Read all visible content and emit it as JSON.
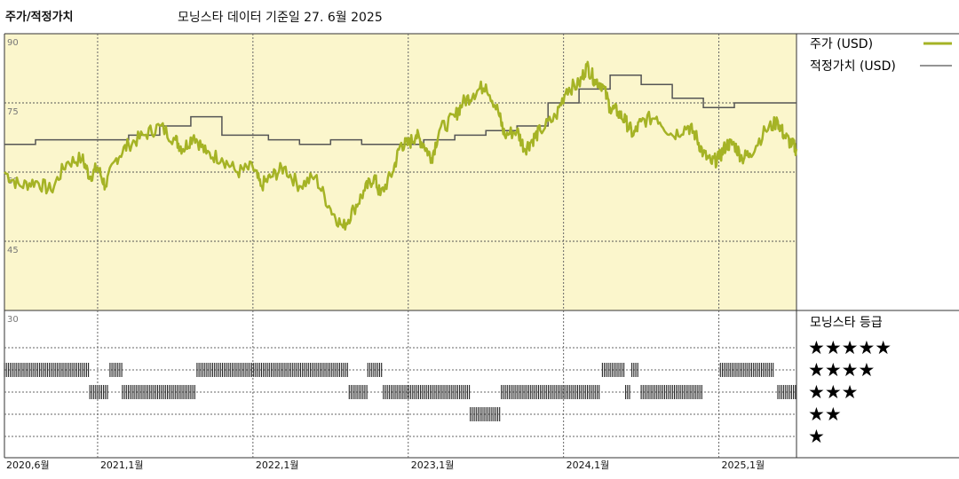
{
  "header": {
    "title": "주가/적정가치",
    "subtitle": "모닝스타 데이터 기준일 27. 6월 2025"
  },
  "legend": {
    "price": "주가 (USD)",
    "fair_value": "적정가치 (USD)",
    "rating_title": "모닝스타 등급"
  },
  "ratings": {
    "star5": "★★★★★",
    "star4": "★★★★",
    "star3": "★★★",
    "star2": "★★",
    "star1": "★"
  },
  "colors": {
    "price": "#a5b325",
    "fair_value": "#555555",
    "background": "#fbf6cc",
    "grid": "#555555",
    "rating_bar": "#222222"
  },
  "chart_data": [
    {
      "type": "line",
      "y_ticks": [
        "90",
        "75",
        "60",
        "45",
        "30"
      ],
      "ylim": [
        30,
        90
      ],
      "x_ticks": [
        "2020,6월",
        "2021,1월",
        "2022,1월",
        "2023,1월",
        "2024,1월",
        "2025,1월"
      ],
      "xlim": [
        2020.4,
        2025.5
      ],
      "x_tick_values": [
        2020.4,
        2021.0,
        2022.0,
        2023.0,
        2024.0,
        2025.0
      ],
      "series": [
        {
          "name": "주가 (USD)",
          "points": [
            [
              2020.4,
              60
            ],
            [
              2020.5,
              57
            ],
            [
              2020.6,
              58
            ],
            [
              2020.7,
              56
            ],
            [
              2020.8,
              62
            ],
            [
              2020.9,
              63
            ],
            [
              2020.95,
              59
            ],
            [
              2021.0,
              61
            ],
            [
              2021.05,
              57
            ],
            [
              2021.12,
              63
            ],
            [
              2021.2,
              66
            ],
            [
              2021.3,
              68
            ],
            [
              2021.4,
              70
            ],
            [
              2021.5,
              67
            ],
            [
              2021.55,
              65
            ],
            [
              2021.62,
              68
            ],
            [
              2021.7,
              64
            ],
            [
              2021.8,
              63
            ],
            [
              2021.9,
              60
            ],
            [
              2022.0,
              61
            ],
            [
              2022.05,
              57
            ],
            [
              2022.12,
              59
            ],
            [
              2022.2,
              61
            ],
            [
              2022.3,
              57
            ],
            [
              2022.4,
              59
            ],
            [
              2022.5,
              52
            ],
            [
              2022.58,
              48
            ],
            [
              2022.65,
              52
            ],
            [
              2022.72,
              56
            ],
            [
              2022.78,
              59
            ],
            [
              2022.82,
              55
            ],
            [
              2022.9,
              60
            ],
            [
              2022.95,
              66
            ],
            [
              2023.0,
              66
            ],
            [
              2023.05,
              68
            ],
            [
              2023.1,
              66
            ],
            [
              2023.15,
              63
            ],
            [
              2023.2,
              69
            ],
            [
              2023.3,
              72
            ],
            [
              2023.35,
              75
            ],
            [
              2023.42,
              77
            ],
            [
              2023.5,
              79
            ],
            [
              2023.58,
              73
            ],
            [
              2023.62,
              68
            ],
            [
              2023.7,
              69
            ],
            [
              2023.75,
              65
            ],
            [
              2023.8,
              67
            ],
            [
              2023.85,
              69
            ],
            [
              2023.95,
              72
            ],
            [
              2024.02,
              78
            ],
            [
              2024.1,
              79
            ],
            [
              2024.15,
              83
            ],
            [
              2024.2,
              80
            ],
            [
              2024.25,
              79
            ],
            [
              2024.3,
              74
            ],
            [
              2024.35,
              73
            ],
            [
              2024.4,
              71
            ],
            [
              2024.45,
              68
            ],
            [
              2024.5,
              71
            ],
            [
              2024.6,
              72
            ],
            [
              2024.7,
              68
            ],
            [
              2024.8,
              70
            ],
            [
              2024.85,
              68
            ],
            [
              2024.9,
              64
            ],
            [
              2024.95,
              62
            ],
            [
              2025.0,
              63
            ],
            [
              2025.05,
              66
            ],
            [
              2025.1,
              66
            ],
            [
              2025.15,
              63
            ],
            [
              2025.2,
              64
            ],
            [
              2025.3,
              69
            ],
            [
              2025.38,
              71
            ],
            [
              2025.42,
              68
            ],
            [
              2025.47,
              66
            ],
            [
              2025.5,
              65
            ]
          ]
        },
        {
          "name": "적정가치 (USD)",
          "steps": [
            [
              2020.4,
              66
            ],
            [
              2020.6,
              67
            ],
            [
              2021.2,
              68
            ],
            [
              2021.4,
              70
            ],
            [
              2021.6,
              72
            ],
            [
              2021.8,
              68
            ],
            [
              2022.1,
              67
            ],
            [
              2022.3,
              66
            ],
            [
              2022.5,
              67
            ],
            [
              2022.7,
              66
            ],
            [
              2023.1,
              67
            ],
            [
              2023.3,
              68
            ],
            [
              2023.5,
              69
            ],
            [
              2023.7,
              70
            ],
            [
              2023.9,
              75
            ],
            [
              2024.1,
              78
            ],
            [
              2024.3,
              81
            ],
            [
              2024.5,
              79
            ],
            [
              2024.7,
              76
            ],
            [
              2024.9,
              74
            ],
            [
              2025.1,
              75
            ],
            [
              2025.45,
              75
            ]
          ]
        }
      ]
    },
    {
      "type": "rating",
      "levels": [
        "5",
        "4",
        "3",
        "2",
        "1"
      ],
      "segments": [
        {
          "stars": 4,
          "from": 2020.4,
          "to": 2020.95
        },
        {
          "stars": 4,
          "from": 2021.08,
          "to": 2021.16
        },
        {
          "stars": 4,
          "from": 2021.64,
          "to": 2022.62
        },
        {
          "stars": 4,
          "from": 2022.74,
          "to": 2022.84
        },
        {
          "stars": 4,
          "from": 2024.25,
          "to": 2024.39
        },
        {
          "stars": 4,
          "from": 2024.44,
          "to": 2024.49
        },
        {
          "stars": 4,
          "from": 2025.01,
          "to": 2025.36
        },
        {
          "stars": 3,
          "from": 2020.95,
          "to": 2021.07
        },
        {
          "stars": 3,
          "from": 2021.16,
          "to": 2021.63
        },
        {
          "stars": 3,
          "from": 2022.62,
          "to": 2022.74
        },
        {
          "stars": 3,
          "from": 2022.84,
          "to": 2023.4
        },
        {
          "stars": 3,
          "from": 2023.6,
          "to": 2024.24
        },
        {
          "stars": 3,
          "from": 2024.4,
          "to": 2024.43
        },
        {
          "stars": 3,
          "from": 2024.5,
          "to": 2024.9
        },
        {
          "stars": 3,
          "from": 2025.38,
          "to": 2025.5
        },
        {
          "stars": 2,
          "from": 2023.4,
          "to": 2023.6
        }
      ]
    }
  ]
}
